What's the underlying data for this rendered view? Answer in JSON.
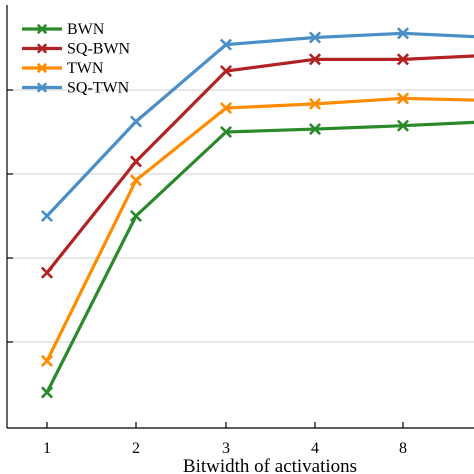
{
  "chart_data": {
    "type": "line",
    "title": "",
    "xlabel": "Bitwidth of activations",
    "ylabel": "",
    "categories": [
      "1",
      "2",
      "3",
      "4",
      "8",
      ""
    ],
    "ylim": [
      0,
      100
    ],
    "yticks": [
      20,
      40,
      60,
      80
    ],
    "grid": true,
    "legend_position": "top-left",
    "series": [
      {
        "name": "BWN",
        "color": "#2a8a2a",
        "marker": "x",
        "values": [
          8,
          50,
          70,
          70.7,
          71.5,
          72.5
        ]
      },
      {
        "name": "SQ-BWN",
        "color": "#b22222",
        "marker": "x",
        "values": [
          36.5,
          63,
          84.5,
          87.3,
          87.3,
          88.3
        ]
      },
      {
        "name": "TWN",
        "color": "#ff8c00",
        "marker": "x",
        "values": [
          15.5,
          58.5,
          75.7,
          76.7,
          78,
          77.5
        ]
      },
      {
        "name": "SQ-TWN",
        "color": "#4a8fc7",
        "marker": "x",
        "values": [
          50,
          72.5,
          90.8,
          92.5,
          93.5,
          92.5
        ]
      }
    ]
  }
}
